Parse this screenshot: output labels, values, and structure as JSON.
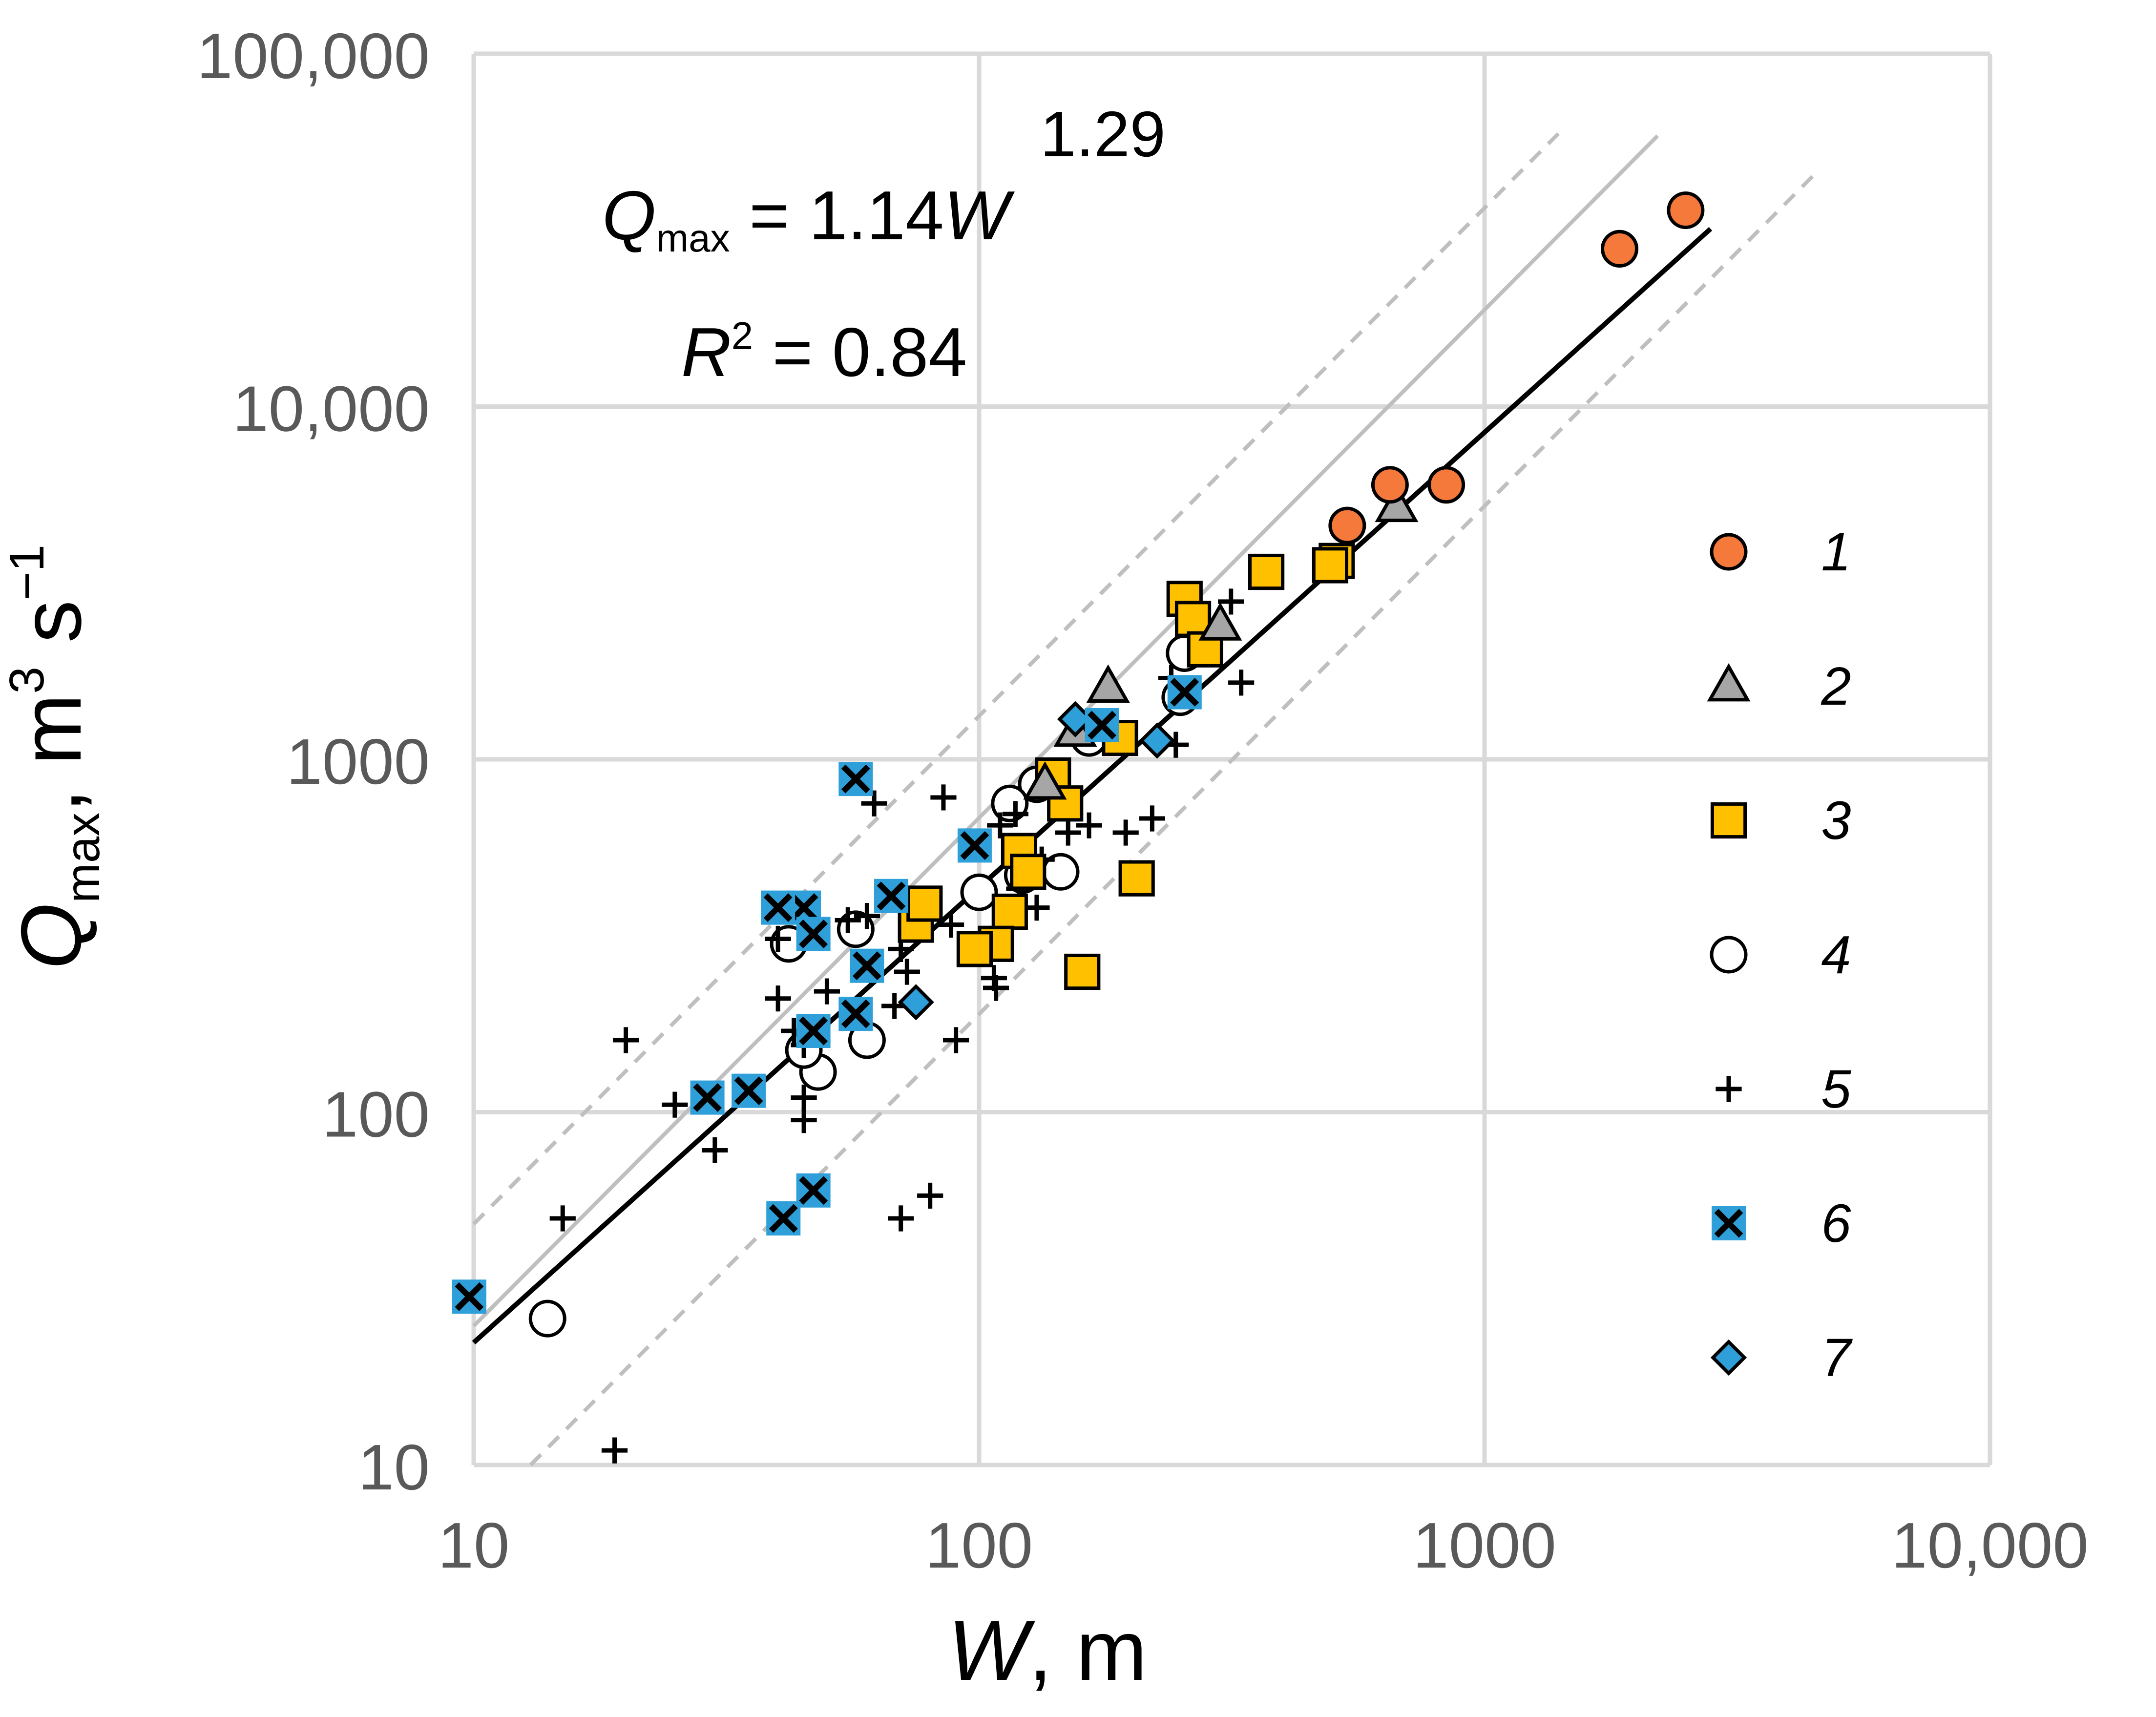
{
  "chart_data": {
    "type": "scatter",
    "x_scale": "log",
    "y_scale": "log",
    "xlim": [
      10,
      10000
    ],
    "ylim": [
      10,
      100000
    ],
    "grid": true,
    "legend_position": "right",
    "x_ticks": [
      10,
      100,
      1000,
      10000
    ],
    "y_ticks": [
      10,
      100,
      1000,
      10000,
      100000
    ],
    "x_tick_labels": [
      "10",
      "100",
      "1000",
      "10,000"
    ],
    "y_tick_labels": [
      "10",
      "100",
      "1000",
      "10,000",
      "100,000"
    ],
    "xlabel": {
      "var": "W",
      "unit": ", m"
    },
    "ylabel": {
      "var": "Q",
      "sub": "max",
      "unit": ", m",
      "sup": "3",
      "unit2": " s",
      "sup2": "−1"
    },
    "equation": {
      "lhs": "Q",
      "lhs_sub": "max",
      "mid": " = 1.14",
      "var": "W",
      "exponent": "1.29"
    },
    "r_squared": {
      "var": "R",
      "sup": "2",
      "text": " = 0.84"
    },
    "lines": [
      {
        "role": "fit",
        "coef": 1.14,
        "exponent": 1.29,
        "x_range": [
          10,
          2800
        ],
        "color": "#000000",
        "style": "solid"
      },
      {
        "role": "reference",
        "coef": 0.9,
        "exponent": 1.44,
        "x_range": [
          10,
          2200
        ],
        "color": "#bfbfbf",
        "style": "solid"
      },
      {
        "role": "upper-bound",
        "coef": 1.75,
        "exponent": 1.44,
        "x_range": [
          10,
          1400
        ],
        "color": "#bfbfbf",
        "style": "dashed"
      },
      {
        "role": "lower-bound",
        "coef": 0.25,
        "exponent": 1.44,
        "x_range": [
          12.5,
          4500
        ],
        "color": "#bfbfbf",
        "style": "dashed"
      }
    ],
    "series": [
      {
        "name": "1",
        "marker": "circle",
        "fill": "#f4793b",
        "stroke": "#000000",
        "points": [
          [
            2500,
            36000
          ],
          [
            1850,
            28000
          ],
          [
            650,
            6000
          ],
          [
            840,
            6000
          ],
          [
            535,
            4600
          ]
        ]
      },
      {
        "name": "2",
        "marker": "triangle",
        "fill": "#a6a6a6",
        "stroke": "#000000",
        "points": [
          [
            670,
            5200
          ],
          [
            300,
            2400
          ],
          [
            180,
            1600
          ],
          [
            155,
            1200
          ],
          [
            135,
            850
          ]
        ]
      },
      {
        "name": "3",
        "marker": "square",
        "fill": "#ffc000",
        "stroke": "#000000",
        "points": [
          [
            370,
            3400
          ],
          [
            510,
            3650
          ],
          [
            495,
            3550
          ],
          [
            255,
            2850
          ],
          [
            265,
            2500
          ],
          [
            280,
            2050
          ],
          [
            190,
            1150
          ],
          [
            140,
            900
          ],
          [
            148,
            750
          ],
          [
            120,
            550
          ],
          [
            205,
            460
          ],
          [
            160,
            250
          ],
          [
            115,
            370
          ],
          [
            75,
            340
          ],
          [
            78,
            390
          ],
          [
            108,
            300
          ],
          [
            98,
            290
          ],
          [
            125,
            480
          ]
        ]
      },
      {
        "name": "4",
        "marker": "circle",
        "fill": "#ffffff",
        "stroke": "#000000",
        "points": [
          [
            1850,
            28000
          ],
          [
            255,
            2000
          ],
          [
            250,
            1500
          ],
          [
            165,
            1150
          ],
          [
            130,
            850
          ],
          [
            115,
            750
          ],
          [
            100,
            420
          ],
          [
            145,
            480
          ],
          [
            122,
            470
          ],
          [
            60,
            160
          ],
          [
            48,
            130
          ],
          [
            42,
            300
          ],
          [
            57,
            330
          ],
          [
            14,
            26
          ],
          [
            45,
            150
          ]
        ]
      },
      {
        "name": "5",
        "marker": "plus",
        "fill": "#000000",
        "stroke": "#000000",
        "points": [
          [
            315,
            2800
          ],
          [
            330,
            1650
          ],
          [
            240,
            1700
          ],
          [
            245,
            1100
          ],
          [
            220,
            680
          ],
          [
            195,
            620
          ],
          [
            165,
            650
          ],
          [
            150,
            620
          ],
          [
            85,
            780
          ],
          [
            62,
            750
          ],
          [
            110,
            650
          ],
          [
            118,
            700
          ],
          [
            133,
            520
          ],
          [
            120,
            430
          ],
          [
            115,
            370
          ],
          [
            130,
            380
          ],
          [
            105,
            310
          ],
          [
            107,
            240
          ],
          [
            108,
            225
          ],
          [
            90,
            160
          ],
          [
            80,
            58
          ],
          [
            70,
            50
          ],
          [
            20,
            160
          ],
          [
            25,
            105
          ],
          [
            30,
            78
          ],
          [
            15,
            50
          ],
          [
            19,
            11
          ],
          [
            40,
            310
          ],
          [
            40,
            210
          ],
          [
            43,
            170
          ],
          [
            45,
            155
          ],
          [
            45,
            110
          ],
          [
            45,
            95
          ],
          [
            50,
            220
          ],
          [
            55,
            350
          ],
          [
            60,
            360
          ],
          [
            70,
            290
          ],
          [
            72,
            250
          ],
          [
            68,
            200
          ],
          [
            75,
            370
          ],
          [
            88,
            340
          ],
          [
            110,
            310
          ]
        ]
      },
      {
        "name": "6",
        "marker": "xsquare",
        "fill": "#2e9fd8",
        "stroke": "#000000",
        "points": [
          [
            255,
            1550
          ],
          [
            175,
            1250
          ],
          [
            98,
            570
          ],
          [
            57,
            880
          ],
          [
            67,
            410
          ],
          [
            45,
            380
          ],
          [
            40,
            380
          ],
          [
            47,
            320
          ],
          [
            60,
            260
          ],
          [
            57,
            190
          ],
          [
            47,
            170
          ],
          [
            35,
            115
          ],
          [
            29,
            110
          ],
          [
            47,
            60
          ],
          [
            41,
            50
          ],
          [
            9.8,
            30
          ]
        ]
      },
      {
        "name": "7",
        "marker": "diamond",
        "fill": "#2e9fd8",
        "stroke": "#000000",
        "points": [
          [
            225,
            1130
          ],
          [
            155,
            1300
          ],
          [
            75,
            205
          ]
        ]
      }
    ]
  }
}
